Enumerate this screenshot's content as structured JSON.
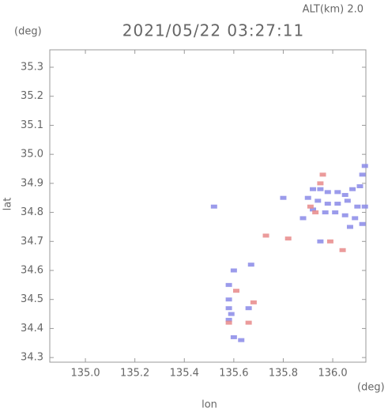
{
  "chart_data": {
    "type": "scatter",
    "header": "ALT(km)  2.0",
    "title": "2021/05/22 03:27:11",
    "y_unit": "(deg)",
    "x_unit": "(deg)",
    "ylabel": "lat",
    "xlabel": "lon",
    "xlim": [
      134.856,
      136.134
    ],
    "ylim": [
      34.284,
      35.36
    ],
    "xticks": [
      {
        "value": 135,
        "label": "135.0"
      },
      135.2,
      135.4,
      135.6,
      135.8,
      {
        "value": 136,
        "label": "136.0"
      }
    ],
    "yticks": [
      34.3,
      34.4,
      34.5,
      34.6,
      34.7,
      34.8,
      34.9,
      {
        "value": 35,
        "label": "35.0"
      },
      35.1,
      35.2,
      35.3
    ],
    "series": [
      {
        "color": "#8a8ae8",
        "x": [
          135.92,
          135.95,
          135.98,
          136.02,
          136.05,
          136.08,
          136.11,
          136.12,
          136.13,
          135.9,
          135.94,
          135.98,
          136.02,
          136.06,
          136.1,
          136.13,
          135.92,
          135.97,
          136.01,
          136.05,
          136.09,
          136.12,
          135.88,
          136.07,
          135.6,
          135.58,
          135.58,
          135.58,
          135.59,
          135.58,
          135.6,
          135.63,
          135.67,
          135.66,
          135.8,
          135.52,
          135.95
        ],
        "y": [
          34.88,
          34.88,
          34.87,
          34.87,
          34.86,
          34.88,
          34.89,
          34.93,
          34.96,
          34.85,
          34.84,
          34.83,
          34.83,
          34.84,
          34.82,
          34.82,
          34.81,
          34.8,
          34.8,
          34.79,
          34.78,
          34.76,
          34.78,
          34.75,
          34.6,
          34.55,
          34.5,
          34.47,
          34.45,
          34.43,
          34.37,
          34.36,
          34.62,
          34.47,
          34.85,
          34.82,
          34.7
        ]
      },
      {
        "color": "#e88a8a",
        "x": [
          135.93,
          135.91,
          135.95,
          135.82,
          135.99,
          136.04,
          135.58,
          135.66,
          135.68,
          135.61,
          135.96,
          135.73
        ],
        "y": [
          34.8,
          34.82,
          34.9,
          34.71,
          34.7,
          34.67,
          34.42,
          34.42,
          34.49,
          34.53,
          34.93,
          34.72
        ]
      }
    ]
  }
}
